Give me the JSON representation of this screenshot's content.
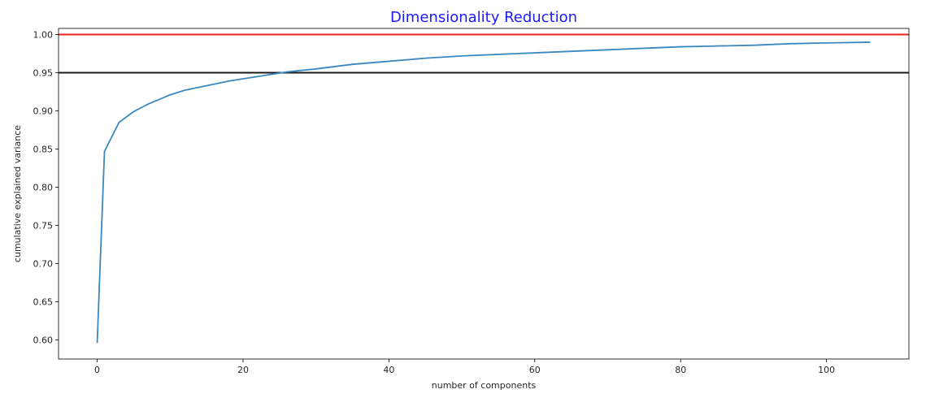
{
  "chart_data": {
    "type": "line",
    "title": "Dimensionality Reduction",
    "xlabel": "number of components",
    "ylabel": "cumulative explained variance",
    "xlim": [
      -5.3,
      111.3
    ],
    "ylim": [
      0.575,
      1.008
    ],
    "x_ticks": [
      0,
      20,
      40,
      60,
      80,
      100
    ],
    "y_ticks": [
      0.6,
      0.65,
      0.7,
      0.75,
      0.8,
      0.85,
      0.9,
      0.95,
      1.0
    ],
    "grid": false,
    "colors": {
      "line": "#3b88c1",
      "ref_high": "#e8221b",
      "ref_low": "#1a1a1a",
      "title": "#1a1aff"
    },
    "reference_lines": [
      {
        "y": 1.0,
        "color": "#e8221b"
      },
      {
        "y": 0.95,
        "color": "#1a1a1a"
      }
    ],
    "series": [
      {
        "x": [
          0,
          1,
          2,
          3,
          4,
          5,
          6,
          7,
          8,
          9,
          10,
          12,
          14,
          16,
          18,
          20,
          22,
          24,
          26,
          28,
          30,
          35,
          40,
          45,
          50,
          55,
          60,
          65,
          70,
          75,
          80,
          85,
          90,
          95,
          100,
          106
        ],
        "y": [
          0.596,
          0.847,
          0.866,
          0.885,
          0.892,
          0.899,
          0.904,
          0.909,
          0.913,
          0.917,
          0.921,
          0.927,
          0.931,
          0.935,
          0.939,
          0.942,
          0.945,
          0.948,
          0.951,
          0.953,
          0.955,
          0.961,
          0.965,
          0.969,
          0.972,
          0.974,
          0.976,
          0.978,
          0.98,
          0.982,
          0.984,
          0.985,
          0.986,
          0.988,
          0.989,
          0.99
        ]
      }
    ]
  }
}
